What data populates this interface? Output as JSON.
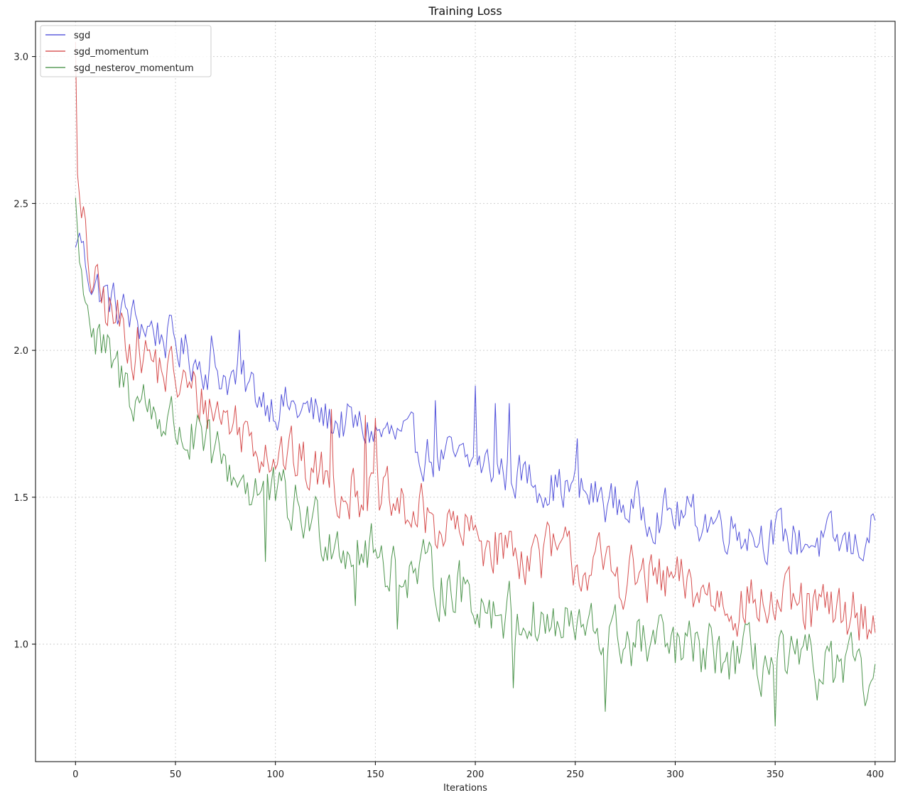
{
  "chart_data": {
    "type": "line",
    "title": "Training Loss",
    "xlabel": "Iterations",
    "ylabel": "",
    "xlim": [
      -20,
      410
    ],
    "ylim": [
      0.6,
      3.12
    ],
    "xticks": [
      0,
      50,
      100,
      150,
      200,
      250,
      300,
      350,
      400
    ],
    "yticks": [
      1.0,
      1.5,
      2.0,
      2.5,
      3.0
    ],
    "xtick_labels": [
      "0",
      "50",
      "100",
      "150",
      "200",
      "250",
      "300",
      "350",
      "400"
    ],
    "ytick_labels": [
      "1.0",
      "1.5",
      "2.0",
      "2.5",
      "3.0"
    ],
    "grid": true,
    "legend_position": "top-left",
    "series": [
      {
        "name": "sgd",
        "color": "#3f3fd6",
        "anchors": [
          [
            0,
            2.35
          ],
          [
            2,
            2.4
          ],
          [
            5,
            2.3
          ],
          [
            10,
            2.22
          ],
          [
            20,
            2.15
          ],
          [
            30,
            2.1
          ],
          [
            40,
            2.07
          ],
          [
            50,
            2.02
          ],
          [
            60,
            1.97
          ],
          [
            70,
            1.93
          ],
          [
            80,
            1.9
          ],
          [
            90,
            1.86
          ],
          [
            100,
            1.82
          ],
          [
            110,
            1.8
          ],
          [
            120,
            1.78
          ],
          [
            130,
            1.76
          ],
          [
            140,
            1.74
          ],
          [
            150,
            1.72
          ],
          [
            160,
            1.7
          ],
          [
            170,
            1.67
          ],
          [
            180,
            1.64
          ],
          [
            190,
            1.62
          ],
          [
            200,
            1.61
          ],
          [
            210,
            1.6
          ],
          [
            220,
            1.58
          ],
          [
            230,
            1.56
          ],
          [
            240,
            1.54
          ],
          [
            250,
            1.52
          ],
          [
            260,
            1.5
          ],
          [
            270,
            1.48
          ],
          [
            280,
            1.46
          ],
          [
            290,
            1.45
          ],
          [
            300,
            1.44
          ],
          [
            310,
            1.43
          ],
          [
            320,
            1.42
          ],
          [
            330,
            1.4
          ],
          [
            340,
            1.38
          ],
          [
            350,
            1.37
          ],
          [
            360,
            1.36
          ],
          [
            370,
            1.35
          ],
          [
            380,
            1.34
          ],
          [
            390,
            1.33
          ],
          [
            400,
            1.4
          ]
        ],
        "amp": 0.07,
        "spikes": [
          [
            200,
            1.88
          ],
          [
            217,
            1.82
          ],
          [
            180,
            1.83
          ],
          [
            210,
            1.82
          ],
          [
            82,
            2.07
          ],
          [
            68,
            2.05
          ],
          [
            251,
            1.7
          ]
        ]
      },
      {
        "name": "sgd_momentum",
        "color": "#d23a3a",
        "anchors": [
          [
            0,
            3.05
          ],
          [
            1,
            2.6
          ],
          [
            3,
            2.45
          ],
          [
            6,
            2.3
          ],
          [
            10,
            2.2
          ],
          [
            20,
            2.1
          ],
          [
            30,
            2.02
          ],
          [
            40,
            1.95
          ],
          [
            50,
            1.9
          ],
          [
            60,
            1.84
          ],
          [
            70,
            1.8
          ],
          [
            80,
            1.75
          ],
          [
            90,
            1.7
          ],
          [
            100,
            1.66
          ],
          [
            110,
            1.62
          ],
          [
            120,
            1.58
          ],
          [
            130,
            1.55
          ],
          [
            140,
            1.53
          ],
          [
            150,
            1.49
          ],
          [
            160,
            1.46
          ],
          [
            170,
            1.44
          ],
          [
            180,
            1.41
          ],
          [
            190,
            1.38
          ],
          [
            200,
            1.36
          ],
          [
            210,
            1.34
          ],
          [
            220,
            1.32
          ],
          [
            230,
            1.31
          ],
          [
            240,
            1.3
          ],
          [
            250,
            1.28
          ],
          [
            260,
            1.26
          ],
          [
            270,
            1.24
          ],
          [
            280,
            1.23
          ],
          [
            290,
            1.21
          ],
          [
            300,
            1.2
          ],
          [
            310,
            1.18
          ],
          [
            320,
            1.16
          ],
          [
            330,
            1.15
          ],
          [
            340,
            1.14
          ],
          [
            350,
            1.13
          ],
          [
            360,
            1.12
          ],
          [
            370,
            1.11
          ],
          [
            380,
            1.1
          ],
          [
            390,
            1.1
          ],
          [
            400,
            1.08
          ]
        ],
        "amp": 0.09,
        "spikes": [
          [
            4,
            2.49
          ],
          [
            128,
            1.8
          ],
          [
            145,
            1.78
          ],
          [
            150,
            1.77
          ]
        ]
      },
      {
        "name": "sgd_nesterov_momentum",
        "color": "#3a8a3a",
        "anchors": [
          [
            0,
            2.52
          ],
          [
            2,
            2.3
          ],
          [
            5,
            2.22
          ],
          [
            10,
            2.02
          ],
          [
            15,
            1.97
          ],
          [
            20,
            1.92
          ],
          [
            30,
            1.85
          ],
          [
            40,
            1.79
          ],
          [
            50,
            1.74
          ],
          [
            60,
            1.68
          ],
          [
            70,
            1.63
          ],
          [
            80,
            1.58
          ],
          [
            90,
            1.53
          ],
          [
            100,
            1.49
          ],
          [
            110,
            1.45
          ],
          [
            120,
            1.41
          ],
          [
            130,
            1.37
          ],
          [
            140,
            1.33
          ],
          [
            150,
            1.3
          ],
          [
            160,
            1.27
          ],
          [
            170,
            1.24
          ],
          [
            180,
            1.22
          ],
          [
            190,
            1.19
          ],
          [
            200,
            1.16
          ],
          [
            210,
            1.12
          ],
          [
            220,
            1.1
          ],
          [
            230,
            1.08
          ],
          [
            240,
            1.06
          ],
          [
            250,
            1.05
          ],
          [
            260,
            1.03
          ],
          [
            270,
            1.02
          ],
          [
            280,
            1.0
          ],
          [
            290,
            0.99
          ],
          [
            300,
            0.98
          ],
          [
            310,
            0.97
          ],
          [
            320,
            0.96
          ],
          [
            330,
            0.95
          ],
          [
            340,
            0.94
          ],
          [
            350,
            0.93
          ],
          [
            360,
            0.92
          ],
          [
            370,
            0.92
          ],
          [
            380,
            0.91
          ],
          [
            390,
            0.9
          ],
          [
            400,
            0.82
          ]
        ],
        "amp": 0.09,
        "spikes": [
          [
            161,
            1.05
          ],
          [
            219,
            0.85
          ],
          [
            265,
            0.77
          ],
          [
            350,
            0.72
          ],
          [
            140,
            1.13
          ],
          [
            95,
            1.28
          ]
        ]
      }
    ]
  }
}
